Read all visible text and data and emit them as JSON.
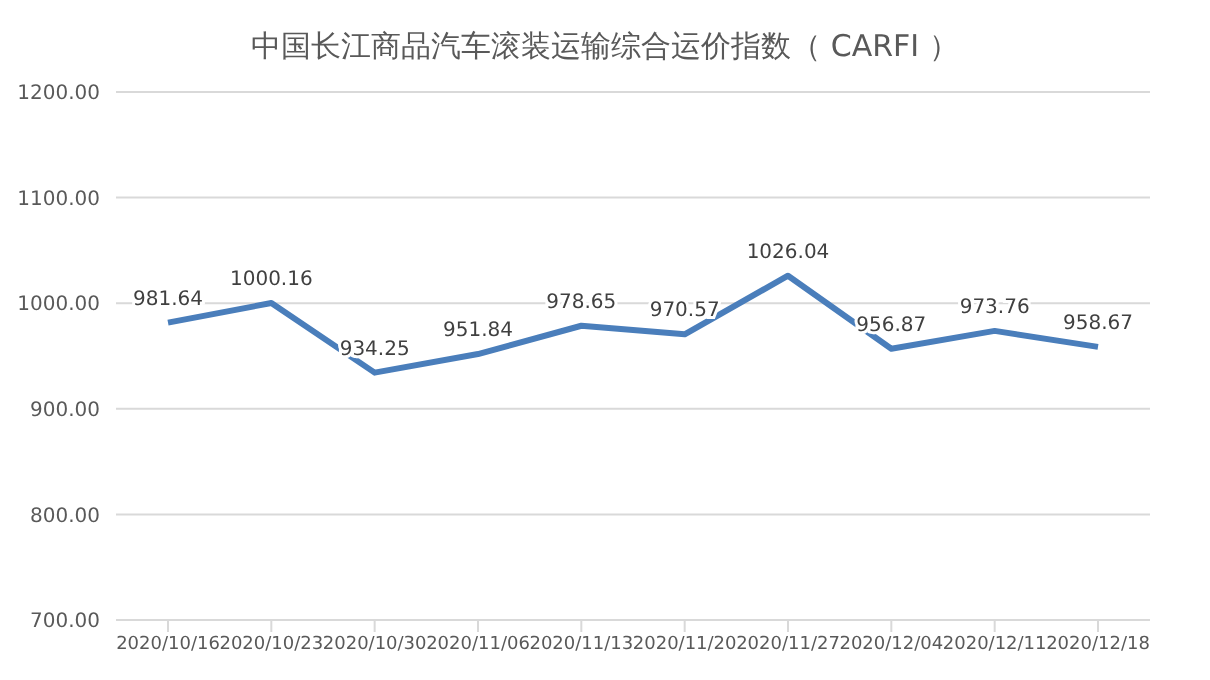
{
  "chart_data": {
    "type": "line",
    "title": "中国长江商品汽车滚装运输综合运价指数（ CARFI ）",
    "categories": [
      "2020/10/16",
      "2020/10/23",
      "2020/10/30",
      "2020/11/06",
      "2020/11/13",
      "2020/11/20",
      "2020/11/27",
      "2020/12/04",
      "2020/12/11",
      "2020/12/18"
    ],
    "series": [
      {
        "color": "#4a7ebb",
        "values": [
          981.64,
          1000.16,
          934.25,
          951.84,
          978.65,
          970.57,
          1026.04,
          956.87,
          973.76,
          958.67
        ]
      }
    ],
    "ylim": [
      700,
      1200
    ],
    "yticks": [
      {
        "value": 700,
        "label": "700.00"
      },
      {
        "value": 800,
        "label": "800.00"
      },
      {
        "value": 900,
        "label": "900.00"
      },
      {
        "value": 1000,
        "label": "1000.00"
      },
      {
        "value": 1100,
        "label": "1100.00"
      },
      {
        "value": 1200,
        "label": "1200.00"
      }
    ],
    "grid": "y",
    "legend": false,
    "marker": "none",
    "line_style": "solid",
    "data_labels": true
  }
}
